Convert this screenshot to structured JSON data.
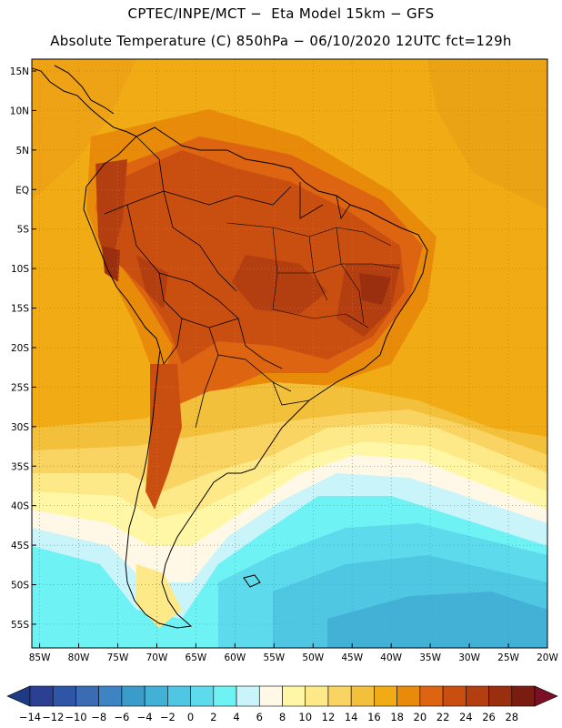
{
  "header": {
    "line1": "CPTEC/INPE/MCT −  Eta Model 15km − GFS",
    "line2": "Absolute Temperature (C) 850hPa − 06/10/2020 12UTC fct=129h"
  },
  "map": {
    "lat_labels": [
      "15N",
      "10N",
      "5N",
      "EQ",
      "5S",
      "10S",
      "15S",
      "20S",
      "25S",
      "30S",
      "35S",
      "40S",
      "45S",
      "50S",
      "55S"
    ],
    "lon_labels": [
      "85W",
      "80W",
      "75W",
      "70W",
      "65W",
      "60W",
      "55W",
      "50W",
      "45W",
      "40W",
      "35W",
      "30W",
      "25W",
      "20W"
    ],
    "lat_values": [
      15,
      10,
      5,
      0,
      -5,
      -10,
      -15,
      -20,
      -25,
      -30,
      -35,
      -40,
      -45,
      -50,
      -55
    ],
    "lon_values": [
      -85,
      -80,
      -75,
      -70,
      -65,
      -60,
      -55,
      -50,
      -45,
      -40,
      -35,
      -30,
      -25,
      -20
    ],
    "lat_range": [
      -58,
      16.5
    ],
    "lon_range": [
      -86,
      -20
    ]
  },
  "colorbar": {
    "labels": [
      "-14",
      "-12",
      "-10",
      "-8",
      "-6",
      "-4",
      "-2",
      "0",
      "2",
      "4",
      "6",
      "8",
      "10",
      "12",
      "14",
      "16",
      "18",
      "20",
      "22",
      "24",
      "26",
      "28"
    ],
    "colors": [
      "#2b3f93",
      "#2f55a6",
      "#3a6cb4",
      "#3f84c2",
      "#3a9cc9",
      "#43b1d6",
      "#4fc7e3",
      "#5ddbec",
      "#6ff2f4",
      "#c9f4fa",
      "#fff8e6",
      "#fff7a6",
      "#fde988",
      "#f9d463",
      "#f3c03c",
      "#f1ab15",
      "#e88a0a",
      "#dd6410",
      "#c94f10",
      "#b33f10",
      "#9a2f10",
      "#7a1d10"
    ],
    "under_color": "#1f3a85",
    "over_color": "#7a0f25"
  }
}
